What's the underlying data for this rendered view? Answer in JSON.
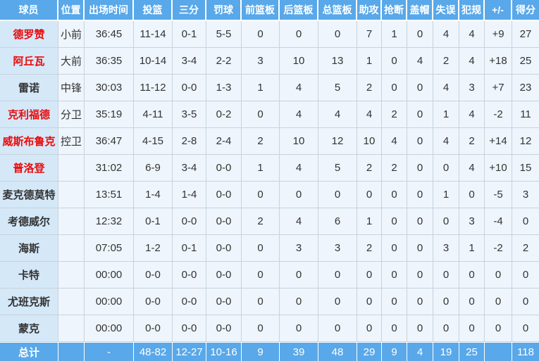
{
  "colors": {
    "header_bg": "#58a8ea",
    "name_column_bg": "#d5e8f8",
    "cell_bg": "#eef5fc",
    "grid_line": "#c9d2da",
    "highlight_name": "#e90b0b",
    "text": "#333333"
  },
  "table": {
    "columns": [
      {
        "key": "player",
        "label": "球员"
      },
      {
        "key": "position",
        "label": "位置"
      },
      {
        "key": "minutes",
        "label": "出场时间"
      },
      {
        "key": "fg",
        "label": "投篮"
      },
      {
        "key": "three",
        "label": "三分"
      },
      {
        "key": "ft",
        "label": "罚球"
      },
      {
        "key": "oreb",
        "label": "前篮板"
      },
      {
        "key": "dreb",
        "label": "后篮板"
      },
      {
        "key": "treb",
        "label": "总篮板"
      },
      {
        "key": "ast",
        "label": "助攻"
      },
      {
        "key": "stl",
        "label": "抢断"
      },
      {
        "key": "blk",
        "label": "盖帽"
      },
      {
        "key": "tov",
        "label": "失误"
      },
      {
        "key": "pf",
        "label": "犯规"
      },
      {
        "key": "pm",
        "label": "+/-"
      },
      {
        "key": "pts",
        "label": "得分"
      }
    ],
    "rows": [
      {
        "player": "德罗赞",
        "red": true,
        "position": "小前",
        "minutes": "36:45",
        "fg": "11-14",
        "three": "0-1",
        "ft": "5-5",
        "oreb": "0",
        "dreb": "0",
        "treb": "0",
        "ast": "7",
        "stl": "1",
        "blk": "0",
        "tov": "4",
        "pf": "4",
        "pm": "+9",
        "pts": "27"
      },
      {
        "player": "阿丘瓦",
        "red": true,
        "position": "大前",
        "minutes": "36:35",
        "fg": "10-14",
        "three": "3-4",
        "ft": "2-2",
        "oreb": "3",
        "dreb": "10",
        "treb": "13",
        "ast": "1",
        "stl": "0",
        "blk": "4",
        "tov": "2",
        "pf": "4",
        "pm": "+18",
        "pts": "25"
      },
      {
        "player": "雷诺",
        "red": false,
        "position": "中锋",
        "minutes": "30:03",
        "fg": "11-12",
        "three": "0-0",
        "ft": "1-3",
        "oreb": "1",
        "dreb": "4",
        "treb": "5",
        "ast": "2",
        "stl": "0",
        "blk": "0",
        "tov": "4",
        "pf": "3",
        "pm": "+7",
        "pts": "23"
      },
      {
        "player": "克利福德",
        "red": true,
        "position": "分卫",
        "minutes": "35:19",
        "fg": "4-11",
        "three": "3-5",
        "ft": "0-2",
        "oreb": "0",
        "dreb": "4",
        "treb": "4",
        "ast": "4",
        "stl": "2",
        "blk": "0",
        "tov": "1",
        "pf": "4",
        "pm": "-2",
        "pts": "11"
      },
      {
        "player": "威斯布鲁克",
        "red": true,
        "position": "控卫",
        "minutes": "36:47",
        "fg": "4-15",
        "three": "2-8",
        "ft": "2-4",
        "oreb": "2",
        "dreb": "10",
        "treb": "12",
        "ast": "10",
        "stl": "4",
        "blk": "0",
        "tov": "4",
        "pf": "2",
        "pm": "+14",
        "pts": "12"
      },
      {
        "player": "普洛登",
        "red": true,
        "position": "",
        "minutes": "31:02",
        "fg": "6-9",
        "three": "3-4",
        "ft": "0-0",
        "oreb": "1",
        "dreb": "4",
        "treb": "5",
        "ast": "2",
        "stl": "2",
        "blk": "0",
        "tov": "0",
        "pf": "4",
        "pm": "+10",
        "pts": "15"
      },
      {
        "player": "麦克德莫特",
        "red": false,
        "position": "",
        "minutes": "13:51",
        "fg": "1-4",
        "three": "1-4",
        "ft": "0-0",
        "oreb": "0",
        "dreb": "0",
        "treb": "0",
        "ast": "0",
        "stl": "0",
        "blk": "0",
        "tov": "1",
        "pf": "0",
        "pm": "-5",
        "pts": "3"
      },
      {
        "player": "考德威尔",
        "red": false,
        "position": "",
        "minutes": "12:32",
        "fg": "0-1",
        "three": "0-0",
        "ft": "0-0",
        "oreb": "2",
        "dreb": "4",
        "treb": "6",
        "ast": "1",
        "stl": "0",
        "blk": "0",
        "tov": "0",
        "pf": "3",
        "pm": "-4",
        "pts": "0"
      },
      {
        "player": "海斯",
        "red": false,
        "position": "",
        "minutes": "07:05",
        "fg": "1-2",
        "three": "0-1",
        "ft": "0-0",
        "oreb": "0",
        "dreb": "3",
        "treb": "3",
        "ast": "2",
        "stl": "0",
        "blk": "0",
        "tov": "3",
        "pf": "1",
        "pm": "-2",
        "pts": "2"
      },
      {
        "player": "卡特",
        "red": false,
        "position": "",
        "minutes": "00:00",
        "fg": "0-0",
        "three": "0-0",
        "ft": "0-0",
        "oreb": "0",
        "dreb": "0",
        "treb": "0",
        "ast": "0",
        "stl": "0",
        "blk": "0",
        "tov": "0",
        "pf": "0",
        "pm": "0",
        "pts": "0"
      },
      {
        "player": "尤班克斯",
        "red": false,
        "position": "",
        "minutes": "00:00",
        "fg": "0-0",
        "three": "0-0",
        "ft": "0-0",
        "oreb": "0",
        "dreb": "0",
        "treb": "0",
        "ast": "0",
        "stl": "0",
        "blk": "0",
        "tov": "0",
        "pf": "0",
        "pm": "0",
        "pts": "0"
      },
      {
        "player": "蒙克",
        "red": false,
        "position": "",
        "minutes": "00:00",
        "fg": "0-0",
        "three": "0-0",
        "ft": "0-0",
        "oreb": "0",
        "dreb": "0",
        "treb": "0",
        "ast": "0",
        "stl": "0",
        "blk": "0",
        "tov": "0",
        "pf": "0",
        "pm": "0",
        "pts": "0"
      }
    ],
    "total": {
      "player": "总计",
      "position": "",
      "minutes": "-",
      "fg": "48-82",
      "three": "12-27",
      "ft": "10-16",
      "oreb": "9",
      "dreb": "39",
      "treb": "48",
      "ast": "29",
      "stl": "9",
      "blk": "4",
      "tov": "19",
      "pf": "25",
      "pm": "",
      "pts": "118"
    }
  }
}
